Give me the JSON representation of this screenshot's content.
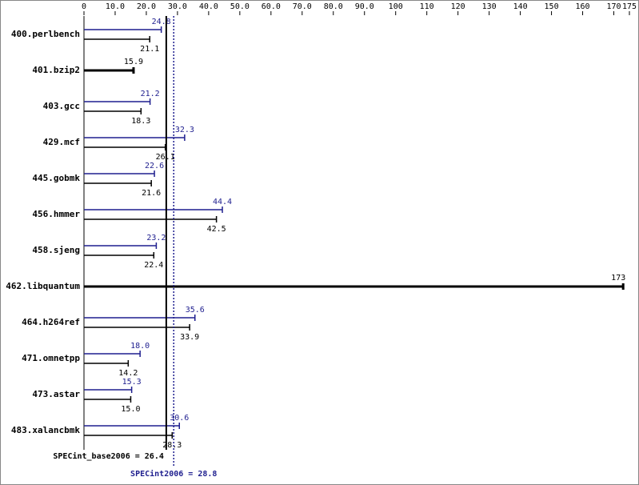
{
  "chart_data": {
    "type": "bar",
    "orientation": "horizontal",
    "categories": [
      "400.perlbench",
      "401.bzip2",
      "403.gcc",
      "429.mcf",
      "445.gobmk",
      "456.hmmer",
      "458.sjeng",
      "462.libquantum",
      "464.h264ref",
      "471.omnetpp",
      "473.astar",
      "483.xalancbmk"
    ],
    "series": [
      {
        "color": "#1f1f8f",
        "values": [
          24.8,
          null,
          21.2,
          32.3,
          22.6,
          44.4,
          23.2,
          null,
          35.6,
          18.0,
          15.3,
          30.6
        ],
        "value_labels": [
          "24.8",
          null,
          "21.2",
          "32.3",
          "22.6",
          "44.4",
          "23.2",
          null,
          "35.6",
          "18.0",
          "15.3",
          "30.6"
        ]
      },
      {
        "color": "#000000",
        "values": [
          21.1,
          15.9,
          18.3,
          26.1,
          21.6,
          42.5,
          22.4,
          173,
          33.9,
          14.2,
          15.0,
          28.3
        ],
        "value_labels": [
          "21.1",
          "15.9",
          "18.3",
          "26.1",
          "21.6",
          "42.5",
          "22.4",
          "173",
          "33.9",
          "14.2",
          "15.0",
          "28.3"
        ]
      }
    ],
    "xlim": [
      0,
      175
    ],
    "xticks": [
      0,
      {
        "value": 10,
        "label": "10.0"
      },
      {
        "value": 20,
        "label": "20.0"
      },
      {
        "value": 30,
        "label": "30.0"
      },
      {
        "value": 40,
        "label": "40.0"
      },
      {
        "value": 50,
        "label": "50.0"
      },
      {
        "value": 60,
        "label": "60.0"
      },
      {
        "value": 70,
        "label": "70.0"
      },
      {
        "value": 80,
        "label": "80.0"
      },
      {
        "value": 90,
        "label": "90.0"
      },
      100,
      110,
      120,
      130,
      140,
      150,
      160,
      170,
      175
    ],
    "reference_lines": [
      {
        "label": "SPECint_base2006 = 26.4",
        "value": 26.4,
        "color": "#000000",
        "style": "solid"
      },
      {
        "label": "SPECint2006 = 28.8",
        "value": 28.8,
        "color": "#1f1f8f",
        "style": "dotted"
      }
    ]
  }
}
